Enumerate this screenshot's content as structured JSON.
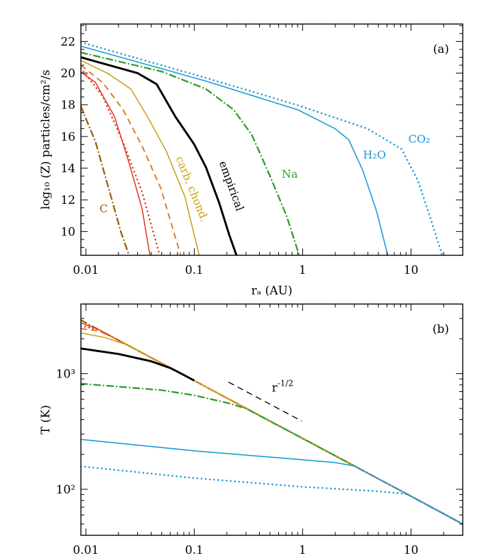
{
  "chart_data": [
    {
      "type": "line",
      "panel_label": "(a)",
      "xlabel": "rₐ (AU)",
      "ylabel": "log₁₀ (Z)  particles/cm²/s",
      "xscale": "log",
      "xlim": [
        0.009,
        30
      ],
      "ylim": [
        8.5,
        23.1
      ],
      "xticks": [
        0.01,
        0.1,
        1,
        10
      ],
      "xtick_labels": [
        "0.01",
        "0.1",
        "1",
        "10"
      ],
      "yticks": [
        10,
        12,
        14,
        16,
        18,
        20,
        22
      ],
      "ytick_labels": [
        "10",
        "12",
        "14",
        "16",
        "18",
        "20",
        "22"
      ],
      "grid": false,
      "series": [
        {
          "label": "C",
          "color": "#a0600f",
          "style": "dashdot",
          "points": [
            [
              0.009,
              17.9
            ],
            [
              0.0123,
              15.65
            ],
            [
              0.0166,
              12.5
            ],
            [
              0.021,
              10.0
            ],
            [
              0.025,
              8.5
            ]
          ]
        },
        {
          "color": "#e03c28",
          "style": "solid",
          "points": [
            [
              0.009,
              20.07
            ],
            [
              0.0123,
              19.4
            ],
            [
              0.0184,
              17.25
            ],
            [
              0.025,
              14.35
            ],
            [
              0.033,
              11.45
            ],
            [
              0.039,
              8.5
            ]
          ]
        },
        {
          "color": "#e03c28",
          "style": "dotted",
          "points": [
            [
              0.009,
              20.3
            ],
            [
              0.0143,
              18.55
            ],
            [
              0.022,
              15.65
            ],
            [
              0.033,
              12.5
            ],
            [
              0.048,
              8.5
            ]
          ]
        },
        {
          "color": "#e07b20",
          "style": "dashed",
          "points": [
            [
              0.009,
              20.5
            ],
            [
              0.0143,
              19.4
            ],
            [
              0.022,
              17.7
            ],
            [
              0.033,
              15.4
            ],
            [
              0.049,
              12.75
            ],
            [
              0.075,
              8.5
            ]
          ]
        },
        {
          "label": "carb. chond.",
          "color": "#c9a21a",
          "style": "solid",
          "points": [
            [
              0.009,
              20.8
            ],
            [
              0.0158,
              20.0
            ],
            [
              0.026,
              19.0
            ],
            [
              0.037,
              17.25
            ],
            [
              0.055,
              15.1
            ],
            [
              0.082,
              12.2
            ],
            [
              0.111,
              8.5
            ]
          ]
        },
        {
          "label": "empirical",
          "color": "#000000",
          "style": "solid-thick",
          "points": [
            [
              0.009,
              21.0
            ],
            [
              0.03,
              20.0
            ],
            [
              0.045,
              19.3
            ],
            [
              0.067,
              17.25
            ],
            [
              0.1,
              15.5
            ],
            [
              0.128,
              14.07
            ],
            [
              0.17,
              11.8
            ],
            [
              0.21,
              9.8
            ],
            [
              0.245,
              8.5
            ]
          ]
        },
        {
          "label": "Na",
          "color": "#33a02c",
          "style": "dashdot",
          "points": [
            [
              0.009,
              21.3
            ],
            [
              0.05,
              20.1
            ],
            [
              0.128,
              19.0
            ],
            [
              0.23,
              17.7
            ],
            [
              0.34,
              16.1
            ],
            [
              0.5,
              13.5
            ],
            [
              0.71,
              11.0
            ],
            [
              0.93,
              8.5
            ]
          ]
        },
        {
          "label": "H₂O",
          "color": "#1a9ad6",
          "style": "solid",
          "points": [
            [
              0.009,
              21.7
            ],
            [
              0.128,
              19.5
            ],
            [
              0.906,
              17.68
            ],
            [
              1.98,
              16.5
            ],
            [
              2.66,
              15.8
            ],
            [
              3.57,
              13.9
            ],
            [
              4.8,
              11.3
            ],
            [
              6.1,
              8.5
            ]
          ]
        },
        {
          "label": "CO₂",
          "color": "#1a9ad6",
          "style": "dotted",
          "points": [
            [
              0.009,
              21.95
            ],
            [
              0.128,
              19.7
            ],
            [
              0.906,
              17.97
            ],
            [
              3.94,
              16.5
            ],
            [
              8.2,
              15.2
            ],
            [
              11.6,
              13.2
            ],
            [
              15.5,
              10.6
            ],
            [
              19.4,
              8.5
            ]
          ]
        }
      ]
    },
    {
      "type": "line",
      "panel_label": "(b)",
      "xlabel": "",
      "ylabel": "T   (K)",
      "xscale": "log",
      "yscale": "log",
      "xlim": [
        0.009,
        30
      ],
      "ylim": [
        40,
        4000
      ],
      "xticks": [
        0.01,
        0.1,
        1,
        10
      ],
      "xtick_labels": [
        "0.01",
        "0.1",
        "1",
        "10"
      ],
      "yticks": [
        100,
        1000
      ],
      "ytick_labels": [
        "10²",
        "10³"
      ],
      "grid": false,
      "reference_line": {
        "label_base": "r",
        "label_sup": "-1/2",
        "color": "#000000",
        "style": "dashed",
        "points": [
          [
            0.207,
            845
          ],
          [
            0.98,
            389
          ]
        ]
      },
      "series": [
        {
          "color": "#a0600f",
          "style": "dashdot",
          "points": [
            [
              0.009,
              2900
            ],
            [
              0.02,
              1945
            ],
            [
              0.05,
              1230
            ],
            [
              0.1,
              870
            ],
            [
              0.3,
              502
            ],
            [
              1,
              275
            ],
            [
              3,
              159
            ],
            [
              10,
              87
            ],
            [
              30,
              50
            ]
          ]
        },
        {
          "color": "#e03c28",
          "style": "solid",
          "points": [
            [
              0.009,
              2750
            ],
            [
              0.013,
              2420
            ],
            [
              0.02,
              1950
            ],
            [
              0.05,
              1230
            ],
            [
              0.1,
              870
            ],
            [
              0.3,
              502
            ],
            [
              1,
              275
            ],
            [
              3,
              159
            ],
            [
              10,
              87
            ],
            [
              30,
              50
            ]
          ]
        },
        {
          "color": "#e03c28",
          "style": "dotted",
          "points": [
            [
              0.009,
              2600
            ],
            [
              0.013,
              2400
            ],
            [
              0.02,
              1950
            ],
            [
              0.05,
              1230
            ],
            [
              0.1,
              870
            ],
            [
              0.3,
              502
            ],
            [
              1,
              275
            ],
            [
              3,
              159
            ],
            [
              10,
              87
            ],
            [
              30,
              50
            ]
          ]
        },
        {
          "color": "#e07b20",
          "style": "dashed",
          "points": [
            [
              0.009,
              2450
            ],
            [
              0.013,
              2350
            ],
            [
              0.02,
              1950
            ],
            [
              0.03,
              1590
            ],
            [
              0.05,
              1230
            ],
            [
              0.1,
              870
            ],
            [
              0.3,
              502
            ],
            [
              1,
              275
            ],
            [
              3,
              159
            ],
            [
              10,
              87
            ],
            [
              30,
              50
            ]
          ]
        },
        {
          "color": "#c9a21a",
          "style": "solid",
          "points": [
            [
              0.009,
              2250
            ],
            [
              0.015,
              2050
            ],
            [
              0.025,
              1750
            ],
            [
              0.035,
              1470
            ],
            [
              0.05,
              1230
            ],
            [
              0.1,
              870
            ],
            [
              0.3,
              502
            ],
            [
              1,
              275
            ],
            [
              3,
              159
            ],
            [
              10,
              87
            ],
            [
              30,
              50
            ]
          ]
        },
        {
          "color": "#000000",
          "style": "solid-thick",
          "points": [
            [
              0.009,
              1650
            ],
            [
              0.02,
              1480
            ],
            [
              0.04,
              1280
            ],
            [
              0.06,
              1120
            ],
            [
              0.08,
              975
            ],
            [
              0.1,
              870
            ]
          ]
        },
        {
          "color": "#33a02c",
          "style": "dashdot",
          "points": [
            [
              0.009,
              820
            ],
            [
              0.05,
              720
            ],
            [
              0.1,
              650
            ],
            [
              0.2,
              560
            ],
            [
              0.3,
              500
            ],
            [
              1,
              275
            ],
            [
              3,
              159
            ]
          ]
        },
        {
          "color": "#1a9ad6",
          "style": "solid",
          "points": [
            [
              0.009,
              270
            ],
            [
              0.1,
              215
            ],
            [
              1,
              180
            ],
            [
              2,
              170
            ],
            [
              3,
              159
            ],
            [
              10,
              87
            ],
            [
              30,
              50
            ]
          ]
        },
        {
          "color": "#1a9ad6",
          "style": "dotted",
          "points": [
            [
              0.009,
              158
            ],
            [
              0.1,
              125
            ],
            [
              1,
              105
            ],
            [
              5,
              96
            ],
            [
              9,
              91
            ],
            [
              10,
              87
            ],
            [
              30,
              50
            ]
          ]
        }
      ]
    }
  ],
  "labels_a": {
    "c": {
      "text": "C",
      "at": [
        0.0146,
        11.2
      ],
      "color": "#a0600f"
    },
    "carb": {
      "text": "carb. chond.",
      "at": [
        0.089,
        12.6
      ],
      "color": "#c9a21a"
    },
    "empirical": {
      "text": "empirical",
      "at": [
        0.205,
        12.8
      ],
      "color": "#000000"
    },
    "na": {
      "text": "Na",
      "at": [
        0.76,
        13.4
      ],
      "color": "#33a02c"
    },
    "h2o": {
      "text": "H₂O",
      "at": [
        4.6,
        14.6
      ],
      "color": "#1a9ad6"
    },
    "co2": {
      "text": "CO₂",
      "at": [
        11.9,
        15.6
      ],
      "color": "#1a9ad6"
    }
  }
}
